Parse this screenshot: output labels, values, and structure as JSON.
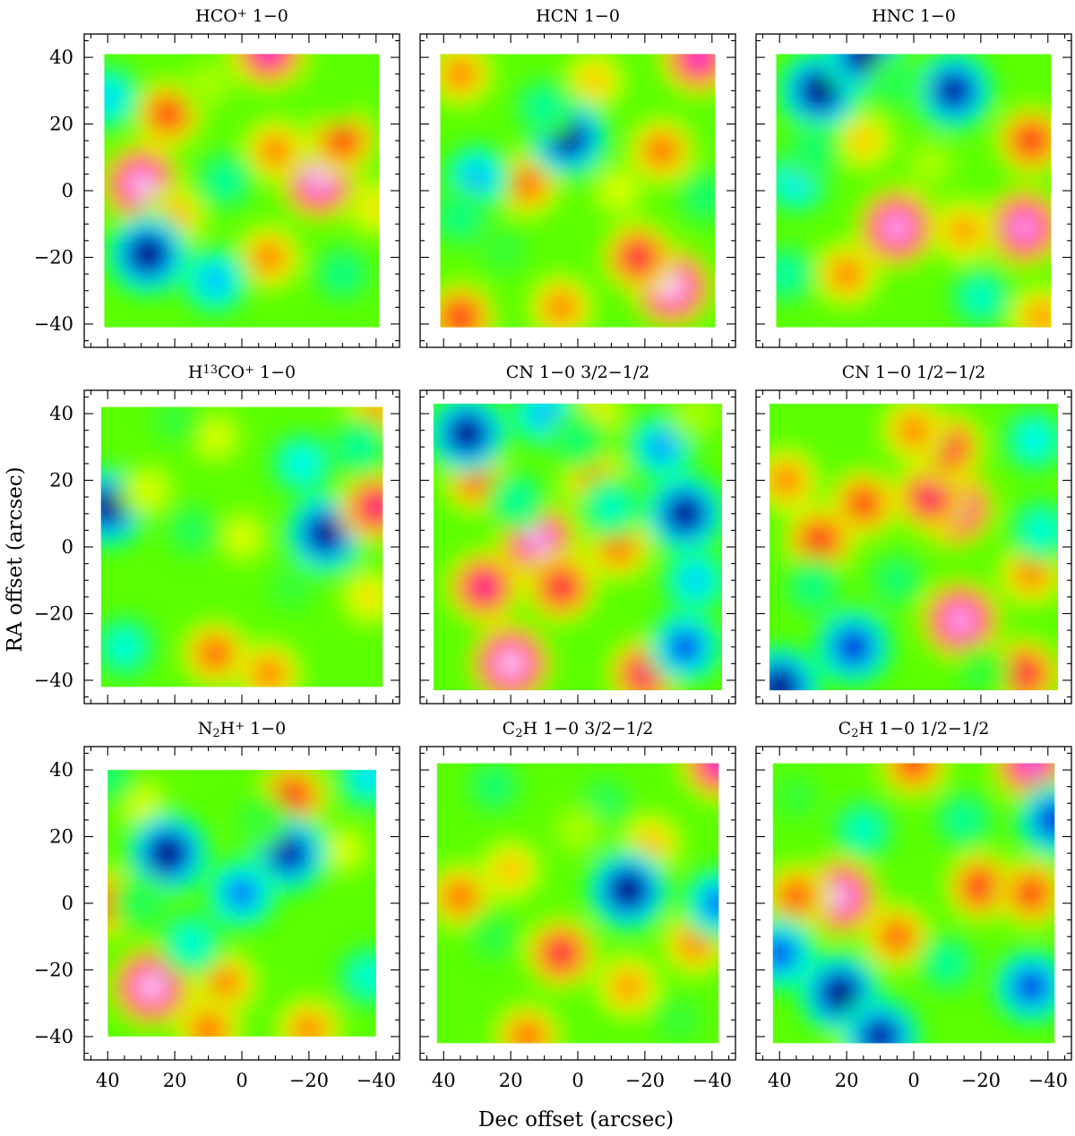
{
  "figure": {
    "xlabel": "Dec offset (arcsec)",
    "ylabel": "RA offset (arcsec)"
  },
  "chart_data": [
    {
      "type": "heatmap",
      "title": "HCO+ 1-0",
      "title_parts": {
        "base": "HCO",
        "sup": "+",
        "rest": " 1−0"
      },
      "xlim": [
        47,
        -47
      ],
      "ylim": [
        -47,
        47
      ],
      "map_extent_x": [
        41,
        -41
      ],
      "map_extent_y": [
        -41,
        41
      ],
      "x_ticks": [
        "40",
        "20",
        "0",
        "−20",
        "−40"
      ],
      "y_ticks": [
        "40",
        "20",
        "0",
        "−20",
        "−40"
      ],
      "show_x_ticklabels": false,
      "show_y_ticklabels": true,
      "features": [
        {
          "x": 30,
          "y": 2,
          "level": 0.97
        },
        {
          "x": -23,
          "y": 3,
          "level": 0.96
        },
        {
          "x": -8,
          "y": 42,
          "level": 0.9
        },
        {
          "x": 22,
          "y": 23,
          "level": 0.78
        },
        {
          "x": -30,
          "y": 15,
          "level": 0.78
        },
        {
          "x": -10,
          "y": 12,
          "level": 0.72
        },
        {
          "x": 20,
          "y": -8,
          "level": 0.68
        },
        {
          "x": -8,
          "y": -20,
          "level": 0.72
        },
        {
          "x": -40,
          "y": -5,
          "level": 0.62
        },
        {
          "x": 28,
          "y": -19,
          "level": 0.0
        },
        {
          "x": 8,
          "y": -27,
          "level": 0.22
        },
        {
          "x": 40,
          "y": 28,
          "level": 0.25
        },
        {
          "x": 5,
          "y": 3,
          "level": 0.36
        },
        {
          "x": -30,
          "y": -25,
          "level": 0.38
        },
        {
          "x": 10,
          "y": 32,
          "level": 0.55
        },
        {
          "x": -28,
          "y": 28,
          "level": 0.5
        }
      ]
    },
    {
      "type": "heatmap",
      "title": "HCN 1-0",
      "title_parts": {
        "base": "HCN 1−0",
        "sup": "",
        "rest": ""
      },
      "xlim": [
        47,
        -47
      ],
      "ylim": [
        -47,
        47
      ],
      "map_extent_x": [
        41,
        -41
      ],
      "map_extent_y": [
        -41,
        41
      ],
      "x_ticks": [
        "40",
        "20",
        "0",
        "−20",
        "−40"
      ],
      "y_ticks": [
        "40",
        "20",
        "0",
        "−20",
        "−40"
      ],
      "show_x_ticklabels": false,
      "show_y_ticklabels": false,
      "features": [
        {
          "x": -28,
          "y": -29,
          "level": 0.98
        },
        {
          "x": -36,
          "y": 40,
          "level": 0.9
        },
        {
          "x": -18,
          "y": -20,
          "level": 0.82
        },
        {
          "x": -25,
          "y": 12,
          "level": 0.74
        },
        {
          "x": 15,
          "y": 2,
          "level": 0.74
        },
        {
          "x": 35,
          "y": 35,
          "level": 0.72
        },
        {
          "x": 35,
          "y": -38,
          "level": 0.8
        },
        {
          "x": 5,
          "y": -35,
          "level": 0.72
        },
        {
          "x": -5,
          "y": 33,
          "level": 0.65
        },
        {
          "x": 3,
          "y": 16,
          "level": 0.02
        },
        {
          "x": 30,
          "y": 4,
          "level": 0.22
        },
        {
          "x": 10,
          "y": 25,
          "level": 0.36
        },
        {
          "x": 35,
          "y": -8,
          "level": 0.38
        },
        {
          "x": -38,
          "y": -2,
          "level": 0.4
        },
        {
          "x": 22,
          "y": -18,
          "level": 0.45
        },
        {
          "x": -12,
          "y": 0,
          "level": 0.58
        }
      ]
    },
    {
      "type": "heatmap",
      "title": "HNC 1-0",
      "title_parts": {
        "base": "HNC 1−0",
        "sup": "",
        "rest": ""
      },
      "xlim": [
        47,
        -47
      ],
      "ylim": [
        -47,
        47
      ],
      "map_extent_x": [
        41,
        -41
      ],
      "map_extent_y": [
        -41,
        41
      ],
      "x_ticks": [
        "40",
        "20",
        "0",
        "−20",
        "−40"
      ],
      "y_ticks": [
        "40",
        "20",
        "0",
        "−20",
        "−40"
      ],
      "show_x_ticklabels": false,
      "show_y_ticklabels": false,
      "features": [
        {
          "x": 5,
          "y": -11,
          "level": 0.96
        },
        {
          "x": -33,
          "y": -11,
          "level": 0.95
        },
        {
          "x": -35,
          "y": 15,
          "level": 0.8
        },
        {
          "x": 20,
          "y": -25,
          "level": 0.72
        },
        {
          "x": -15,
          "y": -12,
          "level": 0.7
        },
        {
          "x": -38,
          "y": -38,
          "level": 0.7
        },
        {
          "x": 15,
          "y": 15,
          "level": 0.65
        },
        {
          "x": -5,
          "y": 8,
          "level": 0.55
        },
        {
          "x": 28,
          "y": 30,
          "level": 0.0
        },
        {
          "x": -12,
          "y": 30,
          "level": 0.04
        },
        {
          "x": 15,
          "y": 41,
          "level": 0.02
        },
        {
          "x": 35,
          "y": 3,
          "level": 0.26
        },
        {
          "x": 38,
          "y": -25,
          "level": 0.35
        },
        {
          "x": -20,
          "y": -32,
          "level": 0.32
        },
        {
          "x": 5,
          "y": 32,
          "level": 0.42
        },
        {
          "x": 30,
          "y": 12,
          "level": 0.4
        }
      ]
    },
    {
      "type": "heatmap",
      "title": "H13CO+ 1-0",
      "title_parts": {
        "base": "H",
        "sup": "13",
        "rest": "CO",
        "sup2": "+",
        "rest2": " 1−0"
      },
      "xlim": [
        47,
        -47
      ],
      "ylim": [
        -47,
        47
      ],
      "map_extent_x": [
        42,
        -42
      ],
      "map_extent_y": [
        -42,
        42
      ],
      "x_ticks": [
        "40",
        "20",
        "0",
        "−20",
        "−40"
      ],
      "y_ticks": [
        "40",
        "20",
        "0",
        "−20",
        "−40"
      ],
      "show_x_ticklabels": false,
      "show_y_ticklabels": true,
      "features": [
        {
          "x": 40,
          "y": 12,
          "level": 0.02
        },
        {
          "x": -25,
          "y": 4,
          "level": 0.02
        },
        {
          "x": -40,
          "y": 12,
          "level": 0.85
        },
        {
          "x": 8,
          "y": -32,
          "level": 0.75
        },
        {
          "x": -8,
          "y": -38,
          "level": 0.72
        },
        {
          "x": 0,
          "y": 3,
          "level": 0.58
        },
        {
          "x": 28,
          "y": 17,
          "level": 0.58
        },
        {
          "x": 8,
          "y": 33,
          "level": 0.58
        },
        {
          "x": -38,
          "y": -15,
          "level": 0.62
        },
        {
          "x": -40,
          "y": 40,
          "level": 0.7
        },
        {
          "x": -18,
          "y": 25,
          "level": 0.28
        },
        {
          "x": 35,
          "y": -30,
          "level": 0.3
        },
        {
          "x": -35,
          "y": 30,
          "level": 0.36
        },
        {
          "x": 15,
          "y": 5,
          "level": 0.42
        },
        {
          "x": 20,
          "y": 38,
          "level": 0.45
        },
        {
          "x": -15,
          "y": -12,
          "level": 0.45
        }
      ]
    },
    {
      "type": "heatmap",
      "title": "CN 1-0 3/2-1/2",
      "title_parts": {
        "base": "CN 1−0 3/2−1/2",
        "sup": "",
        "rest": ""
      },
      "xlim": [
        47,
        -47
      ],
      "ylim": [
        -47,
        47
      ],
      "map_extent_x": [
        43,
        -43
      ],
      "map_extent_y": [
        -43,
        43
      ],
      "x_ticks": [
        "40",
        "20",
        "0",
        "−20",
        "−40"
      ],
      "y_ticks": [
        "40",
        "20",
        "0",
        "−20",
        "−40"
      ],
      "show_x_ticklabels": false,
      "show_y_ticklabels": false,
      "features": [
        {
          "x": 20,
          "y": -35,
          "level": 0.98
        },
        {
          "x": 12,
          "y": 2,
          "level": 0.95
        },
        {
          "x": 28,
          "y": -12,
          "level": 0.86
        },
        {
          "x": 5,
          "y": -12,
          "level": 0.82
        },
        {
          "x": -20,
          "y": -38,
          "level": 0.84
        },
        {
          "x": 30,
          "y": 20,
          "level": 0.76
        },
        {
          "x": -5,
          "y": 20,
          "level": 0.72
        },
        {
          "x": -12,
          "y": 0,
          "level": 0.74
        },
        {
          "x": -5,
          "y": 40,
          "level": 0.62
        },
        {
          "x": 33,
          "y": 34,
          "level": 0.02
        },
        {
          "x": -32,
          "y": 10,
          "level": 0.02
        },
        {
          "x": -32,
          "y": -30,
          "level": 0.12
        },
        {
          "x": -25,
          "y": 30,
          "level": 0.2
        },
        {
          "x": -35,
          "y": -10,
          "level": 0.24
        },
        {
          "x": 10,
          "y": 40,
          "level": 0.22
        },
        {
          "x": -10,
          "y": 12,
          "level": 0.32
        },
        {
          "x": 18,
          "y": 14,
          "level": 0.36
        },
        {
          "x": 0,
          "y": 32,
          "level": 0.4
        },
        {
          "x": -35,
          "y": 40,
          "level": 0.55
        }
      ]
    },
    {
      "type": "heatmap",
      "title": "CN 1-0 1/2-1/2",
      "title_parts": {
        "base": "CN 1−0 1/2−1/2",
        "sup": "",
        "rest": ""
      },
      "xlim": [
        47,
        -47
      ],
      "ylim": [
        -47,
        47
      ],
      "map_extent_x": [
        43,
        -43
      ],
      "map_extent_y": [
        -43,
        43
      ],
      "x_ticks": [
        "40",
        "20",
        "0",
        "−20",
        "−40"
      ],
      "y_ticks": [
        "40",
        "20",
        "0",
        "−20",
        "−40"
      ],
      "show_x_ticklabels": false,
      "show_y_ticklabels": false,
      "features": [
        {
          "x": -12,
          "y": 12,
          "level": 0.96
        },
        {
          "x": -14,
          "y": -22,
          "level": 0.96
        },
        {
          "x": -5,
          "y": 15,
          "level": 0.84
        },
        {
          "x": 15,
          "y": 13,
          "level": 0.78
        },
        {
          "x": -10,
          "y": 30,
          "level": 0.82
        },
        {
          "x": 28,
          "y": 2,
          "level": 0.8
        },
        {
          "x": 0,
          "y": 35,
          "level": 0.72
        },
        {
          "x": -35,
          "y": -8,
          "level": 0.72
        },
        {
          "x": 38,
          "y": 20,
          "level": 0.72
        },
        {
          "x": -33,
          "y": -38,
          "level": 0.82
        },
        {
          "x": 18,
          "y": -30,
          "level": 0.08
        },
        {
          "x": 40,
          "y": -42,
          "level": 0.0
        },
        {
          "x": -36,
          "y": 32,
          "level": 0.28
        },
        {
          "x": -38,
          "y": 5,
          "level": 0.3
        },
        {
          "x": 30,
          "y": -12,
          "level": 0.38
        },
        {
          "x": 5,
          "y": -10,
          "level": 0.4
        },
        {
          "x": -20,
          "y": -38,
          "level": 0.45
        }
      ]
    },
    {
      "type": "heatmap",
      "title": "N2H+ 1-0",
      "title_parts": {
        "base": "N",
        "sub": "2",
        "rest": "H",
        "sup2": "+",
        "rest2": " 1−0"
      },
      "xlim": [
        47,
        -47
      ],
      "ylim": [
        -47,
        47
      ],
      "map_extent_x": [
        40,
        -40
      ],
      "map_extent_y": [
        -40,
        40
      ],
      "x_ticks": [
        "40",
        "20",
        "0",
        "−20",
        "−40"
      ],
      "y_ticks": [
        "40",
        "20",
        "0",
        "−20",
        "−40"
      ],
      "show_x_ticklabels": true,
      "show_y_ticklabels": true,
      "features": [
        {
          "x": 27,
          "y": -25,
          "level": 0.98
        },
        {
          "x": -15,
          "y": 32,
          "level": 0.8
        },
        {
          "x": 40,
          "y": 0,
          "level": 0.78
        },
        {
          "x": 5,
          "y": -24,
          "level": 0.72
        },
        {
          "x": -20,
          "y": -38,
          "level": 0.72
        },
        {
          "x": 10,
          "y": -38,
          "level": 0.74
        },
        {
          "x": 30,
          "y": 30,
          "level": 0.58
        },
        {
          "x": -30,
          "y": 16,
          "level": 0.58
        },
        {
          "x": 22,
          "y": 15,
          "level": 0.0
        },
        {
          "x": -14,
          "y": 15,
          "level": 0.05
        },
        {
          "x": 0,
          "y": 3,
          "level": 0.16
        },
        {
          "x": -38,
          "y": 38,
          "level": 0.25
        },
        {
          "x": 15,
          "y": -12,
          "level": 0.3
        },
        {
          "x": -38,
          "y": -22,
          "level": 0.3
        },
        {
          "x": 40,
          "y": 38,
          "level": 0.4
        },
        {
          "x": 30,
          "y": 0,
          "level": 0.42
        },
        {
          "x": -5,
          "y": 25,
          "level": 0.45
        }
      ]
    },
    {
      "type": "heatmap",
      "title": "C2H 1-0 3/2-1/2",
      "title_parts": {
        "base": "C",
        "sub": "2",
        "rest": "H 1−0 3/2−1/2"
      },
      "xlim": [
        47,
        -47
      ],
      "ylim": [
        -47,
        47
      ],
      "map_extent_x": [
        42,
        -42
      ],
      "map_extent_y": [
        -42,
        42
      ],
      "x_ticks": [
        "40",
        "20",
        "0",
        "−20",
        "−40"
      ],
      "y_ticks": [
        "40",
        "20",
        "0",
        "−20",
        "−40"
      ],
      "show_x_ticklabels": true,
      "show_y_ticklabels": false,
      "features": [
        {
          "x": -42,
          "y": 42,
          "level": 0.9
        },
        {
          "x": 5,
          "y": -15,
          "level": 0.82
        },
        {
          "x": 35,
          "y": 2,
          "level": 0.74
        },
        {
          "x": 15,
          "y": -40,
          "level": 0.74
        },
        {
          "x": -35,
          "y": -12,
          "level": 0.72
        },
        {
          "x": -15,
          "y": -25,
          "level": 0.7
        },
        {
          "x": 20,
          "y": 10,
          "level": 0.66
        },
        {
          "x": -22,
          "y": 18,
          "level": 0.66
        },
        {
          "x": -15,
          "y": 4,
          "level": 0.0
        },
        {
          "x": -42,
          "y": 0,
          "level": 0.15
        },
        {
          "x": 25,
          "y": 35,
          "level": 0.4
        },
        {
          "x": -8,
          "y": 30,
          "level": 0.42
        },
        {
          "x": 25,
          "y": -10,
          "level": 0.44
        },
        {
          "x": -30,
          "y": -35,
          "level": 0.45
        },
        {
          "x": 0,
          "y": 22,
          "level": 0.55
        }
      ]
    },
    {
      "type": "heatmap",
      "title": "C2H 1-0 1/2-1/2",
      "title_parts": {
        "base": "C",
        "sub": "2",
        "rest": "H 1−0 1/2−1/2"
      },
      "xlim": [
        47,
        -47
      ],
      "ylim": [
        -47,
        47
      ],
      "map_extent_x": [
        42,
        -42
      ],
      "map_extent_y": [
        -42,
        42
      ],
      "x_ticks": [
        "40",
        "20",
        "0",
        "−20",
        "−40"
      ],
      "y_ticks": [
        "40",
        "20",
        "0",
        "−20",
        "−40"
      ],
      "show_x_ticklabels": true,
      "show_y_ticklabels": false,
      "features": [
        {
          "x": 22,
          "y": 2,
          "level": 0.96
        },
        {
          "x": -20,
          "y": 5,
          "level": 0.8
        },
        {
          "x": -35,
          "y": 3,
          "level": 0.78
        },
        {
          "x": 0,
          "y": 42,
          "level": 0.78
        },
        {
          "x": -35,
          "y": 42,
          "level": 0.92
        },
        {
          "x": 35,
          "y": 2,
          "level": 0.76
        },
        {
          "x": 5,
          "y": -10,
          "level": 0.75
        },
        {
          "x": 15,
          "y": -40,
          "level": 0.72
        },
        {
          "x": 22,
          "y": -27,
          "level": 0.0
        },
        {
          "x": 10,
          "y": -40,
          "level": 0.04
        },
        {
          "x": -35,
          "y": -25,
          "level": 0.1
        },
        {
          "x": -42,
          "y": 25,
          "level": 0.08
        },
        {
          "x": 40,
          "y": -15,
          "level": 0.12
        },
        {
          "x": 15,
          "y": 22,
          "level": 0.32
        },
        {
          "x": -15,
          "y": 25,
          "level": 0.36
        },
        {
          "x": -10,
          "y": -18,
          "level": 0.36
        },
        {
          "x": 35,
          "y": 32,
          "level": 0.45
        }
      ]
    }
  ]
}
